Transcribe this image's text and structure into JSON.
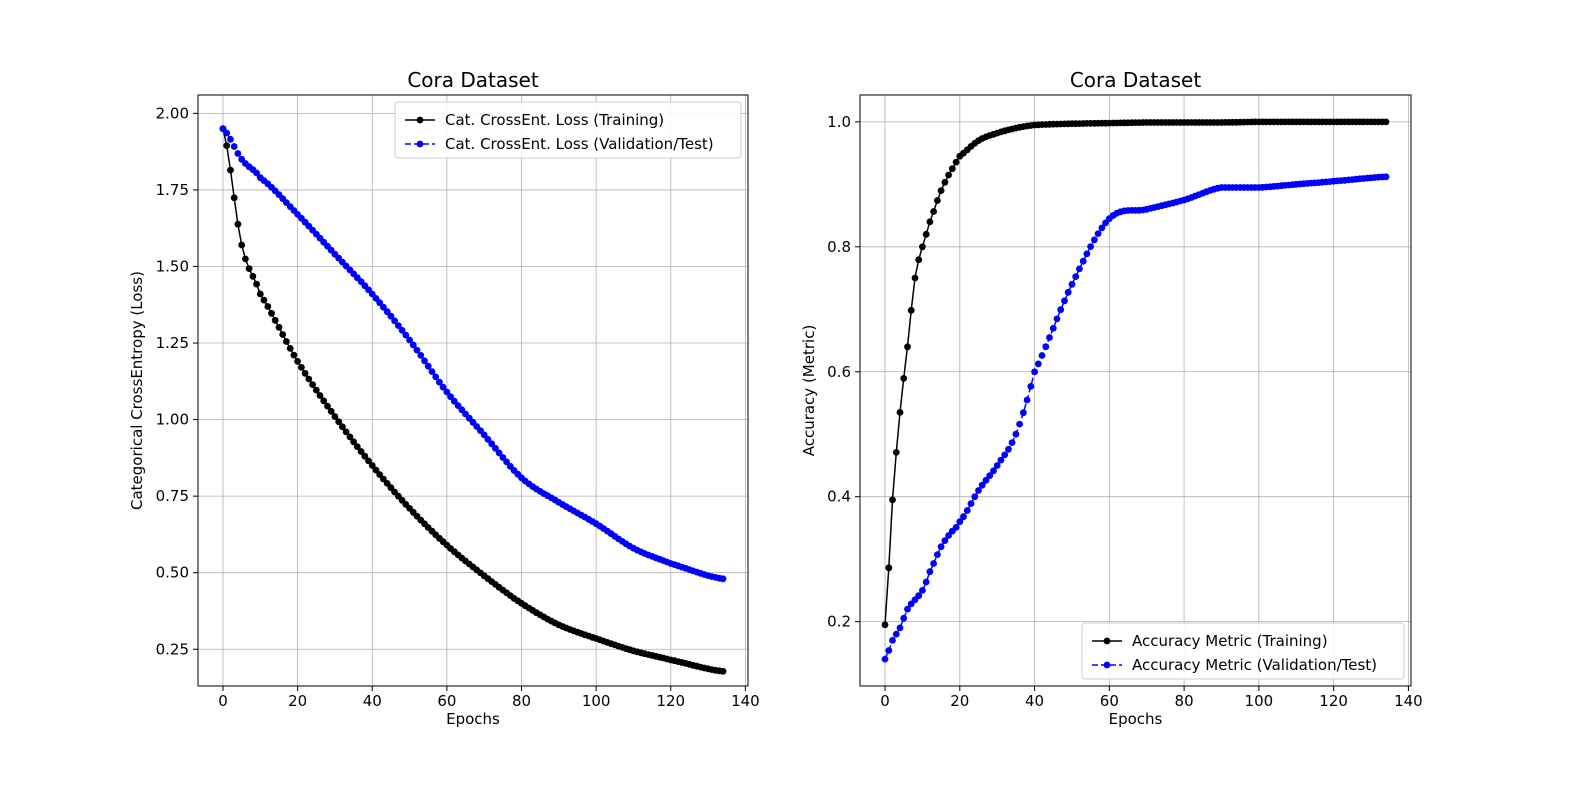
{
  "figure": {
    "background": "#ffffff"
  },
  "chart_data": [
    {
      "type": "line",
      "title": "Cora Dataset",
      "xlabel": "Epochs",
      "ylabel": "Categorical CrossEntropy (Loss)",
      "xlim": [
        -6.7,
        140.7
      ],
      "ylim": [
        0.13,
        2.06
      ],
      "xticks": [
        0,
        20,
        40,
        60,
        80,
        100,
        120,
        140
      ],
      "xtick_labels": [
        "0",
        "20",
        "40",
        "60",
        "80",
        "100",
        "120",
        "140"
      ],
      "yticks": [
        0.25,
        0.5,
        0.75,
        1.0,
        1.25,
        1.5,
        1.75,
        2.0
      ],
      "ytick_labels": [
        "0.25",
        "0.50",
        "0.75",
        "1.00",
        "1.25",
        "1.50",
        "1.75",
        "2.00"
      ],
      "grid": true,
      "legend_position": "upper right",
      "x": [
        0,
        5,
        10,
        20,
        30,
        40,
        50,
        60,
        70,
        80,
        90,
        100,
        110,
        120,
        134
      ],
      "series": [
        {
          "name": "Cat. CrossEnt. Loss (Training)",
          "color": "#000000",
          "linestyle": "solid",
          "values": [
            1.95,
            1.57,
            1.41,
            1.19,
            1.01,
            0.85,
            0.71,
            0.59,
            0.49,
            0.4,
            0.33,
            0.285,
            0.245,
            0.215,
            0.178
          ]
        },
        {
          "name": "Cat. CrossEnt. Loss (Validation/Test)",
          "color": "#0000ff",
          "linestyle": "dashed",
          "values": [
            1.95,
            1.85,
            1.79,
            1.67,
            1.54,
            1.41,
            1.26,
            1.09,
            0.95,
            0.81,
            0.73,
            0.66,
            0.58,
            0.53,
            0.48
          ]
        }
      ]
    },
    {
      "type": "line",
      "title": "Cora Dataset",
      "xlabel": "Epochs",
      "ylabel": "Accuracy (Metric)",
      "xlim": [
        -6.7,
        140.7
      ],
      "ylim": [
        0.097,
        1.043
      ],
      "xticks": [
        0,
        20,
        40,
        60,
        80,
        100,
        120,
        140
      ],
      "xtick_labels": [
        "0",
        "20",
        "40",
        "60",
        "80",
        "100",
        "120",
        "140"
      ],
      "yticks": [
        0.2,
        0.4,
        0.6,
        0.8,
        1.0
      ],
      "ytick_labels": [
        "0.2",
        "0.4",
        "0.6",
        "0.8",
        "1.0"
      ],
      "grid": true,
      "legend_position": "lower right",
      "x": [
        0,
        2,
        4,
        6,
        8,
        10,
        12,
        15,
        18,
        20,
        25,
        30,
        35,
        40,
        50,
        60,
        70,
        80,
        90,
        100,
        110,
        120,
        134
      ],
      "series": [
        {
          "name": "Accuracy Metric (Training)",
          "color": "#000000",
          "linestyle": "solid",
          "values": [
            0.195,
            0.395,
            0.535,
            0.64,
            0.75,
            0.8,
            0.84,
            0.89,
            0.925,
            0.945,
            0.97,
            0.982,
            0.99,
            0.995,
            0.997,
            0.998,
            0.999,
            0.999,
            0.999,
            1.0,
            1.0,
            1.0,
            1.0
          ]
        },
        {
          "name": "Accuracy Metric (Validation/Test)",
          "color": "#0000ff",
          "linestyle": "dashed",
          "values": [
            0.14,
            0.17,
            0.19,
            0.22,
            0.235,
            0.25,
            0.28,
            0.32,
            0.345,
            0.36,
            0.41,
            0.45,
            0.5,
            0.6,
            0.74,
            0.845,
            0.86,
            0.875,
            0.895,
            0.895,
            0.9,
            0.905,
            0.912
          ]
        }
      ]
    }
  ]
}
